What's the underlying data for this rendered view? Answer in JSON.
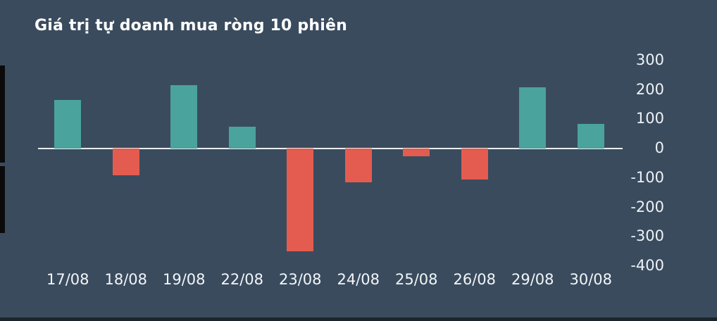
{
  "title": "Giá trị tự doanh mua ròng 10 phiên",
  "colors": {
    "background": "#3a4b5e",
    "positive": "#4aa39c",
    "negative": "#e35c4f",
    "axis_line": "#e9edf0",
    "title_text": "#ffffff",
    "tick_text": "#eef2f5"
  },
  "chart_data": {
    "type": "bar",
    "title": "Giá trị tự doanh mua ròng 10 phiên",
    "categories": [
      "17/08",
      "18/08",
      "19/08",
      "22/08",
      "23/08",
      "24/08",
      "25/08",
      "26/08",
      "29/08",
      "30/08"
    ],
    "values": [
      165,
      -90,
      215,
      75,
      -350,
      -115,
      -25,
      -105,
      210,
      85
    ],
    "series_name": "Giá trị tự doanh mua ròng",
    "xlabel": "",
    "ylabel": "",
    "y_ticks": [
      300,
      200,
      100,
      0,
      -100,
      -200,
      -300,
      -400
    ],
    "ylim": [
      -400,
      300
    ],
    "grid": false,
    "legend_position": "none",
    "y_axis_side": "right",
    "bar_colors": {
      "positive": "#4aa39c",
      "negative": "#e35c4f"
    }
  }
}
